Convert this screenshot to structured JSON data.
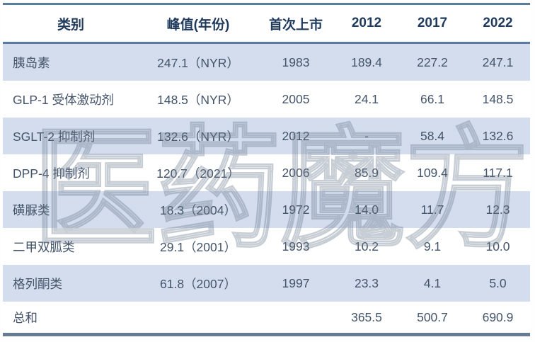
{
  "watermark": {
    "text": "医药魔方"
  },
  "colors": {
    "band_row": "#d3ddee",
    "header_text": "#1f3a5c",
    "body_text": "#44546a",
    "top_line": "#5c7b97",
    "header_line": "#5d7aa3",
    "bottom_line": "#677c90",
    "watermark_stroke": "#6f7d8f",
    "watermark_highlight": "#e9e0a6"
  },
  "chart_data": {
    "type": "table",
    "title": "",
    "columns": [
      "类别",
      "峰值(年份)",
      "首次上市",
      "2012",
      "2017",
      "2022"
    ],
    "rows": [
      [
        "胰岛素",
        "247.1（NYR）",
        "1983",
        "189.4",
        "227.2",
        "247.1"
      ],
      [
        "GLP-1 受体激动剂",
        "148.5（NYR）",
        "2005",
        "24.1",
        "66.1",
        "148.5"
      ],
      [
        "SGLT-2 抑制剂",
        "132.6（NYR）",
        "2012",
        "-",
        "58.4",
        "132.6"
      ],
      [
        "DPP-4 抑制剂",
        "120.7（2021）",
        "2006",
        "85.9",
        "109.4",
        "117.1"
      ],
      [
        "磺脲类",
        "18.3（2004）",
        "1972",
        "14.0",
        "11.7",
        "12.3"
      ],
      [
        "二甲双胍类",
        "29.1（2001）",
        "1993",
        "10.2",
        "9.1",
        "10.0"
      ],
      [
        "格列酮类",
        "61.8（2007）",
        "1997",
        "23.3",
        "4.1",
        "5.0"
      ],
      [
        "总和",
        "",
        "",
        "365.5",
        "500.7",
        "690.9"
      ]
    ]
  }
}
